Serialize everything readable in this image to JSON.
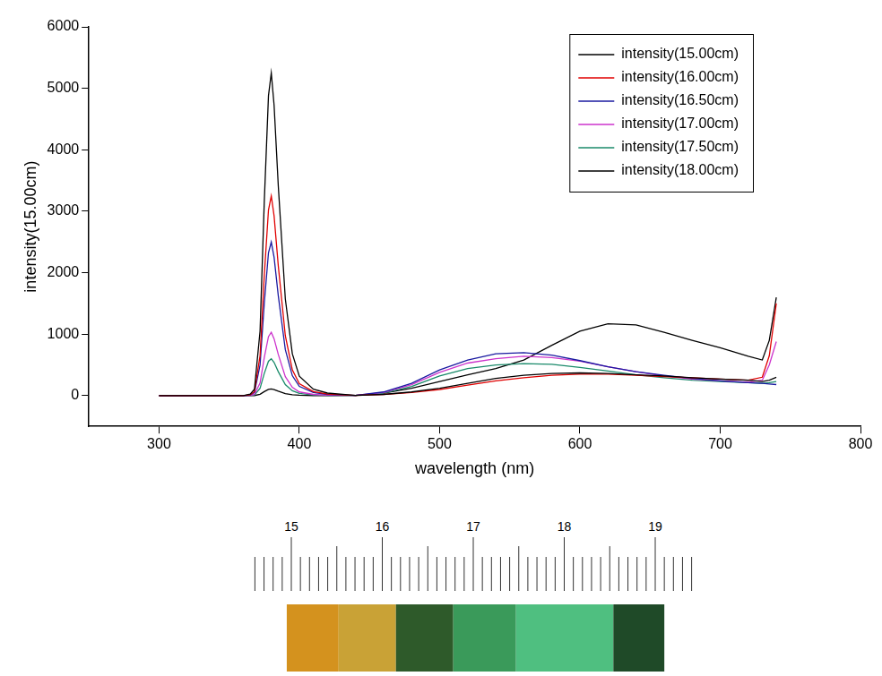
{
  "chart_data": {
    "type": "line",
    "x_label": "wavelength (nm)",
    "y_label": "intensity(15.00cm)",
    "x": [
      300,
      350,
      360,
      365,
      368,
      372,
      375,
      378,
      380,
      382,
      385,
      390,
      395,
      400,
      410,
      420,
      440,
      460,
      480,
      500,
      520,
      540,
      560,
      580,
      600,
      620,
      640,
      660,
      680,
      700,
      720,
      730,
      735,
      740
    ],
    "series": [
      {
        "name": "intensity(15.00cm)",
        "color": "#000000",
        "values": [
          0,
          0,
          0,
          26,
          105,
          1050,
          3150,
          4880,
          5250,
          4725,
          3410,
          1575,
          680,
          315,
          105,
          42,
          5,
          20,
          60,
          120,
          200,
          280,
          330,
          360,
          370,
          360,
          340,
          320,
          290,
          270,
          250,
          230,
          250,
          300
        ]
      },
      {
        "name": "intensity(16.00cm)",
        "color": "#e00000",
        "values": [
          0,
          0,
          0,
          16,
          65,
          650,
          1950,
          3020,
          3250,
          2925,
          2110,
          975,
          420,
          195,
          65,
          26,
          5,
          20,
          50,
          100,
          170,
          240,
          290,
          330,
          350,
          350,
          330,
          310,
          290,
          270,
          250,
          300,
          650,
          1500
        ]
      },
      {
        "name": "intensity(16.50cm)",
        "color": "#1a1aa0",
        "values": [
          0,
          0,
          0,
          12,
          50,
          500,
          1500,
          2325,
          2500,
          2250,
          1625,
          750,
          325,
          150,
          50,
          20,
          5,
          60,
          200,
          420,
          580,
          680,
          700,
          660,
          570,
          470,
          390,
          330,
          280,
          240,
          210,
          200,
          190,
          180
        ]
      },
      {
        "name": "intensity(17.00cm)",
        "color": "#cc33cc",
        "values": [
          0,
          0,
          0,
          5,
          20,
          205,
          620,
          960,
          1030,
          925,
          670,
          310,
          135,
          60,
          20,
          8,
          5,
          50,
          180,
          380,
          530,
          600,
          640,
          620,
          560,
          470,
          390,
          320,
          270,
          240,
          220,
          250,
          500,
          880
        ]
      },
      {
        "name": "intensity(17.50cm)",
        "color": "#1a8a6a",
        "values": [
          0,
          0,
          0,
          3,
          12,
          120,
          360,
          560,
          600,
          540,
          390,
          180,
          80,
          36,
          12,
          5,
          5,
          40,
          150,
          320,
          440,
          500,
          520,
          510,
          460,
          400,
          340,
          290,
          250,
          230,
          210,
          200,
          210,
          230
        ]
      },
      {
        "name": "intensity(18.00cm)",
        "color": "#000000",
        "values": [
          0,
          0,
          0,
          1,
          2,
          22,
          66,
          102,
          110,
          99,
          72,
          33,
          14,
          7,
          2,
          1,
          5,
          40,
          120,
          230,
          340,
          440,
          580,
          820,
          1050,
          1170,
          1150,
          1030,
          900,
          780,
          640,
          580,
          900,
          1600
        ]
      }
    ],
    "xlim": [
      250,
      800
    ],
    "xticks": [
      300,
      400,
      500,
      600,
      700,
      800
    ],
    "ylim": [
      -500,
      6000
    ],
    "yticks": [
      0,
      1000,
      2000,
      3000,
      4000,
      5000,
      6000
    ],
    "grid": false,
    "legend": "upper right"
  },
  "ruler": {
    "range": [
      14.55,
      19.4
    ],
    "ticks": [
      15,
      16,
      17,
      18,
      19
    ],
    "swatches": [
      {
        "from": 14.95,
        "to": 15.52,
        "color": "#d4921e"
      },
      {
        "from": 15.52,
        "to": 16.15,
        "color": "#c9a236"
      },
      {
        "from": 16.15,
        "to": 16.78,
        "color": "#2e5a2a"
      },
      {
        "from": 16.78,
        "to": 17.47,
        "color": "#3a9a5a"
      },
      {
        "from": 17.47,
        "to": 18.54,
        "color": "#4fbf80"
      },
      {
        "from": 18.54,
        "to": 19.1,
        "color": "#1f4a28"
      }
    ]
  }
}
